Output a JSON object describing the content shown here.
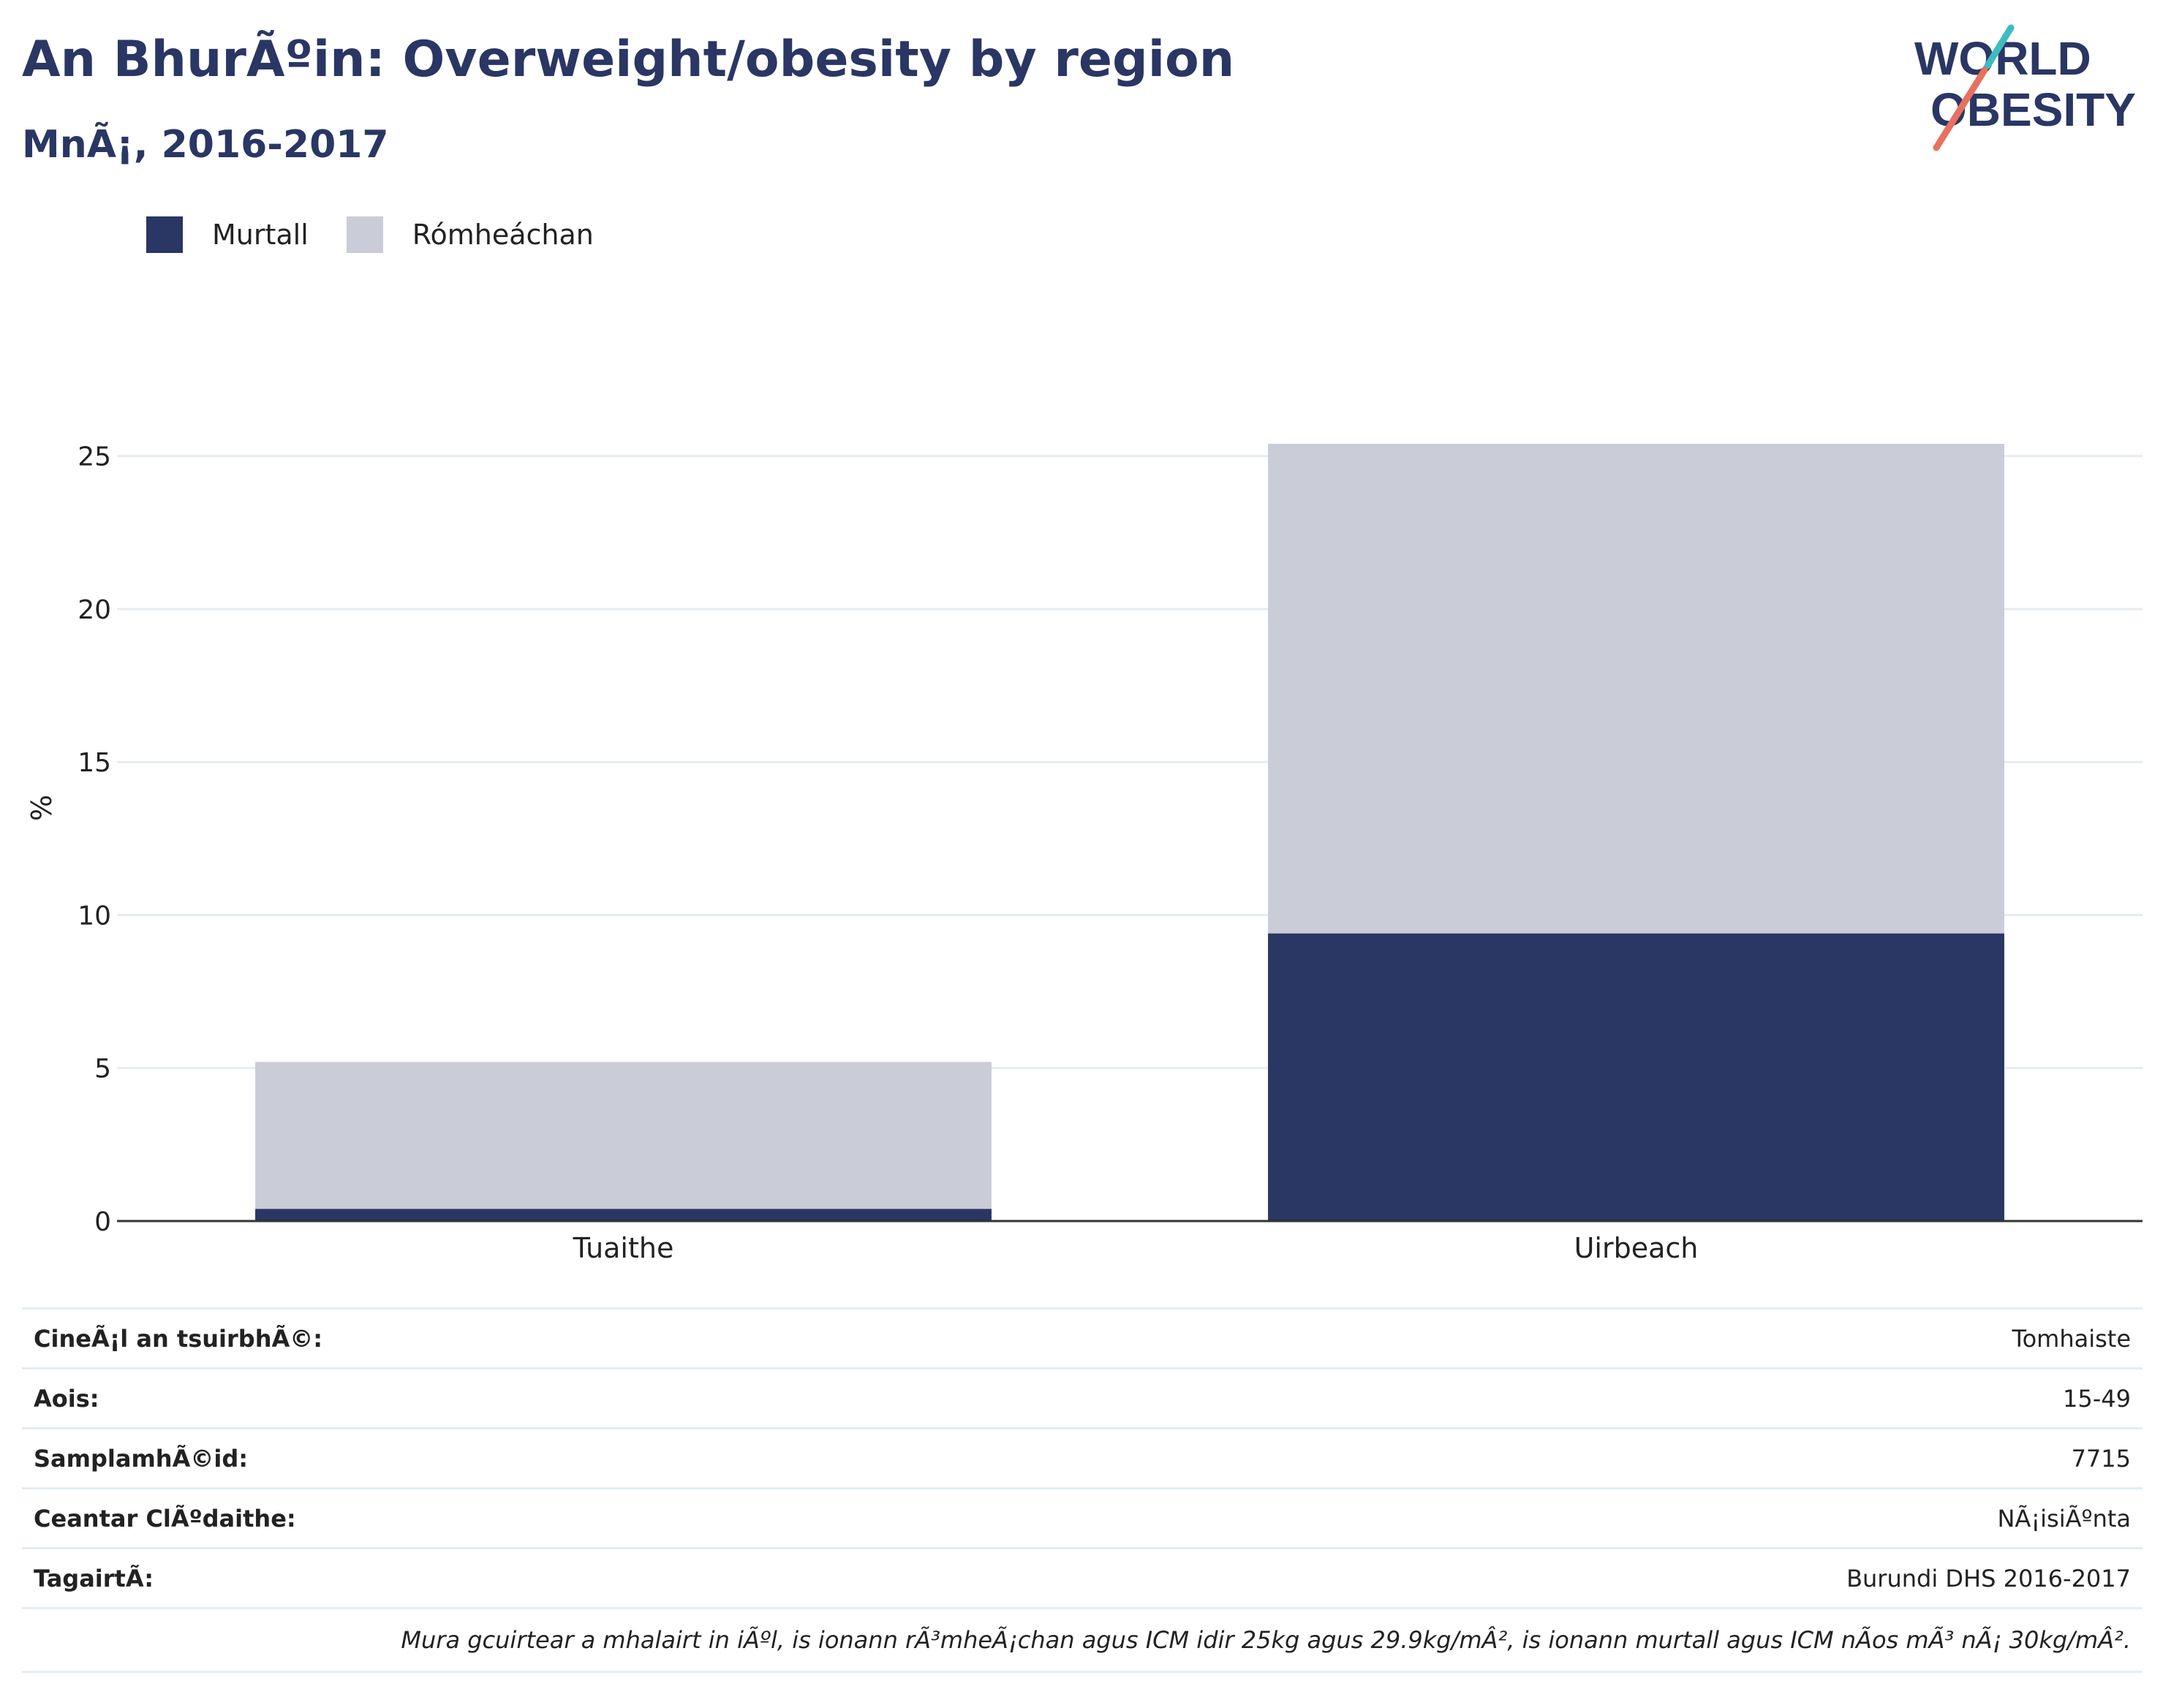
{
  "header": {
    "title": "An BhurÃºin: Overweight/obesity by region",
    "subtitle": "MnÃ¡, 2016-2017"
  },
  "logo": {
    "line1": "WORLD",
    "line2": "OBESITY"
  },
  "legend": [
    {
      "label": "Murtall",
      "color": "#2a3663"
    },
    {
      "label": "Rómheáchan",
      "color": "#cacdd8"
    }
  ],
  "chart_data": {
    "type": "bar",
    "stacked": true,
    "categories": [
      "Tuaithe",
      "Uirbeach"
    ],
    "series": [
      {
        "name": "Murtall",
        "values": [
          0.4,
          9.4
        ],
        "color": "#2a3663"
      },
      {
        "name": "Rómheáchan",
        "values": [
          4.8,
          16.0
        ],
        "color": "#cacdd8"
      }
    ],
    "ylabel": "%",
    "ylim": [
      0,
      27
    ],
    "yticks": [
      0,
      5,
      10,
      15,
      20,
      25
    ],
    "grid": true
  },
  "info": [
    {
      "key": "CineÃ¡l an tsuirbhÃ©:",
      "value": "Tomhaiste"
    },
    {
      "key": "Aois:",
      "value": "15-49"
    },
    {
      "key": "SamplamhÃ©id:",
      "value": "7715"
    },
    {
      "key": "Ceantar ClÃºdaithe:",
      "value": "NÃ¡isiÃºnta"
    },
    {
      "key": "TagairtÃ:",
      "value": "Burundi DHS 2016-2017"
    }
  ],
  "note": "Mura gcuirtear a mhalairt in iÃºl, is ionann rÃ³mheÃ¡chan agus ICM idir 25kg agus 29.9kg/mÂ², is ionann murtall agus ICM nÃos mÃ³ nÃ¡ 30kg/mÂ²."
}
